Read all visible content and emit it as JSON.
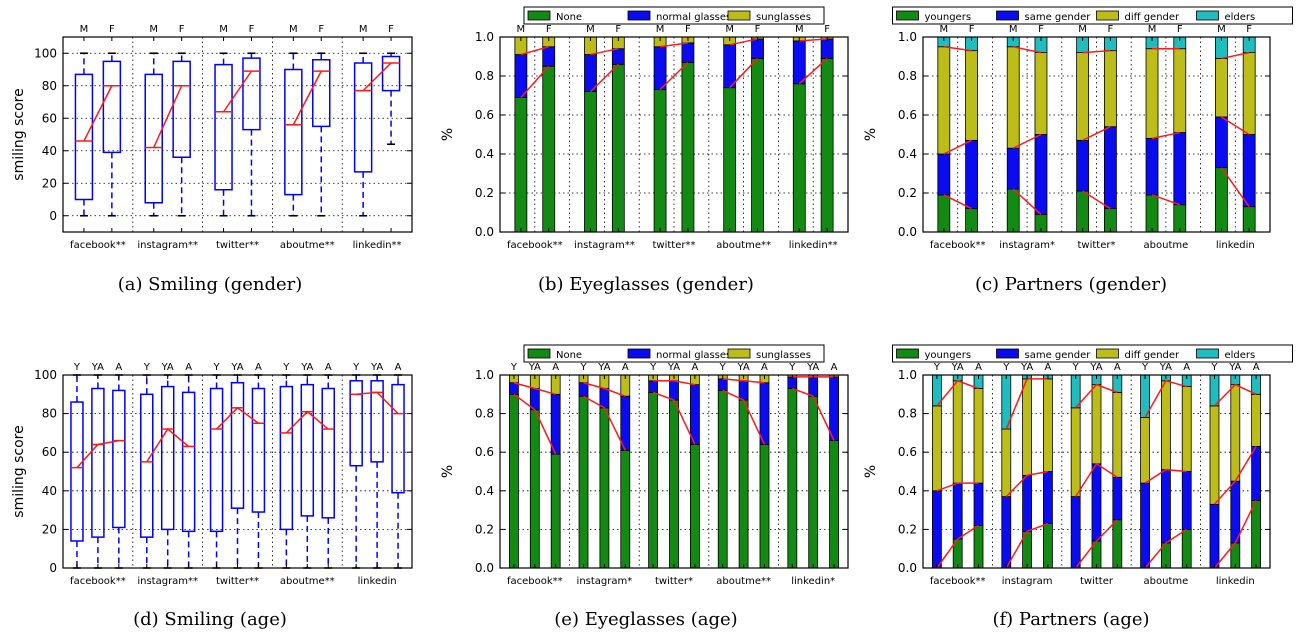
{
  "colors": {
    "green": "#138a13",
    "blue": "#0b0bf0",
    "olive": "#bdbd1a",
    "cyan": "#1fbdbd",
    "red": "#ff1a1a",
    "box": "#0000ff"
  },
  "chart_data": [
    {
      "type": "box",
      "caption": "(a) Smiling (gender)",
      "ylabel": "smiling score",
      "ylim": [
        -10,
        110
      ],
      "yticks": [
        0,
        20,
        40,
        60,
        80,
        100
      ],
      "groups": [
        "facebook**",
        "instagram**",
        "twitter**",
        "aboutme**",
        "linkedin**"
      ],
      "subgroups": [
        "M",
        "F"
      ],
      "boxes": [
        [
          {
            "whislo": 0,
            "q1": 10,
            "med": 46,
            "q3": 87,
            "whishi": 100
          },
          {
            "whislo": 0,
            "q1": 39,
            "med": 80,
            "q3": 95,
            "whishi": 100
          }
        ],
        [
          {
            "whislo": 0,
            "q1": 8,
            "med": 42,
            "q3": 87,
            "whishi": 100
          },
          {
            "whislo": 0,
            "q1": 36,
            "med": 80,
            "q3": 95,
            "whishi": 100
          }
        ],
        [
          {
            "whislo": 0,
            "q1": 16,
            "med": 64,
            "q3": 93,
            "whishi": 100
          },
          {
            "whislo": 0,
            "q1": 53,
            "med": 89,
            "q3": 97,
            "whishi": 100
          }
        ],
        [
          {
            "whislo": 0,
            "q1": 13,
            "med": 56,
            "q3": 90,
            "whishi": 100
          },
          {
            "whislo": 0,
            "q1": 55,
            "med": 89,
            "q3": 96,
            "whishi": 100
          }
        ],
        [
          {
            "whislo": 0,
            "q1": 27,
            "med": 77,
            "q3": 94,
            "whishi": 100
          },
          {
            "whislo": 44,
            "q1": 77,
            "med": 94,
            "q3": 98,
            "whishi": 100
          }
        ]
      ]
    },
    {
      "type": "bar",
      "stacked": true,
      "caption": "(b) Eyeglasses (gender)",
      "ylabel": "%",
      "ylim": [
        0,
        1.0
      ],
      "yticks": [
        0.0,
        0.2,
        0.4,
        0.6,
        0.8,
        1.0
      ],
      "legend": [
        "None",
        "normal glasses",
        "sunglasses"
      ],
      "legend_colors": [
        "#138a13",
        "#0b0bf0",
        "#bdbd1a"
      ],
      "groups": [
        "facebook**",
        "instagram**",
        "twitter**",
        "aboutme**",
        "linkedin**"
      ],
      "subgroups": [
        "M",
        "F"
      ],
      "bars": [
        [
          [
            0.69,
            0.22,
            0.09
          ],
          [
            0.85,
            0.1,
            0.05
          ]
        ],
        [
          [
            0.72,
            0.19,
            0.09
          ],
          [
            0.86,
            0.08,
            0.06
          ]
        ],
        [
          [
            0.73,
            0.22,
            0.05
          ],
          [
            0.87,
            0.1,
            0.03
          ]
        ],
        [
          [
            0.74,
            0.22,
            0.04
          ],
          [
            0.89,
            0.1,
            0.01
          ]
        ],
        [
          [
            0.76,
            0.22,
            0.02
          ],
          [
            0.89,
            0.1,
            0.01
          ]
        ]
      ]
    },
    {
      "type": "bar",
      "stacked": true,
      "caption": "(c) Partners (gender)",
      "ylabel": "%",
      "ylim": [
        0,
        1.0
      ],
      "yticks": [
        0.0,
        0.2,
        0.4,
        0.6,
        0.8,
        1.0
      ],
      "legend": [
        "youngers",
        "same gender",
        "diff gender",
        "elders"
      ],
      "legend_colors": [
        "#138a13",
        "#0b0bf0",
        "#bdbd1a",
        "#1fbdbd"
      ],
      "groups": [
        "facebook**",
        "instagram*",
        "twitter*",
        "aboutme",
        "linkedin"
      ],
      "subgroups": [
        "M",
        "F"
      ],
      "bars": [
        [
          [
            0.19,
            0.21,
            0.55,
            0.05
          ],
          [
            0.12,
            0.35,
            0.46,
            0.07
          ]
        ],
        [
          [
            0.22,
            0.21,
            0.52,
            0.05
          ],
          [
            0.09,
            0.41,
            0.42,
            0.08
          ]
        ],
        [
          [
            0.21,
            0.26,
            0.45,
            0.08
          ],
          [
            0.12,
            0.42,
            0.39,
            0.07
          ]
        ],
        [
          [
            0.19,
            0.29,
            0.46,
            0.06
          ],
          [
            0.14,
            0.37,
            0.43,
            0.06
          ]
        ],
        [
          [
            0.33,
            0.26,
            0.3,
            0.11
          ],
          [
            0.13,
            0.37,
            0.42,
            0.08
          ]
        ]
      ]
    },
    {
      "type": "box",
      "caption": "(d) Smiling (age)",
      "ylabel": "smiling score",
      "ylim": [
        0,
        100
      ],
      "yticks": [
        0,
        20,
        40,
        60,
        80,
        100
      ],
      "groups": [
        "facebook**",
        "instagram**",
        "twitter**",
        "aboutme**",
        "linkedin"
      ],
      "subgroups": [
        "Y",
        "YA",
        "A"
      ],
      "boxes": [
        [
          {
            "whislo": 0,
            "q1": 14,
            "med": 52,
            "q3": 86,
            "whishi": 100
          },
          {
            "whislo": 0,
            "q1": 16,
            "med": 64,
            "q3": 93,
            "whishi": 100
          },
          {
            "whislo": 0,
            "q1": 21,
            "med": 66,
            "q3": 92,
            "whishi": 100
          }
        ],
        [
          {
            "whislo": 0,
            "q1": 16,
            "med": 55,
            "q3": 90,
            "whishi": 100
          },
          {
            "whislo": 0,
            "q1": 20,
            "med": 72,
            "q3": 94,
            "whishi": 100
          },
          {
            "whislo": 0,
            "q1": 19,
            "med": 63,
            "q3": 91,
            "whishi": 100
          }
        ],
        [
          {
            "whislo": 0,
            "q1": 19,
            "med": 72,
            "q3": 93,
            "whishi": 100
          },
          {
            "whislo": 0,
            "q1": 31,
            "med": 83,
            "q3": 96,
            "whishi": 100
          },
          {
            "whislo": 0,
            "q1": 29,
            "med": 75,
            "q3": 93,
            "whishi": 100
          }
        ],
        [
          {
            "whislo": 0,
            "q1": 20,
            "med": 70,
            "q3": 94,
            "whishi": 100
          },
          {
            "whislo": 0,
            "q1": 27,
            "med": 81,
            "q3": 95,
            "whishi": 100
          },
          {
            "whislo": 0,
            "q1": 26,
            "med": 72,
            "q3": 93,
            "whishi": 100
          }
        ],
        [
          {
            "whislo": 0,
            "q1": 53,
            "med": 90,
            "q3": 97,
            "whishi": 100
          },
          {
            "whislo": 0,
            "q1": 55,
            "med": 91,
            "q3": 97,
            "whishi": 100
          },
          {
            "whislo": 0,
            "q1": 39,
            "med": 80,
            "q3": 95,
            "whishi": 100
          }
        ]
      ]
    },
    {
      "type": "bar",
      "stacked": true,
      "caption": "(e) Eyeglasses (age)",
      "ylabel": "%",
      "ylim": [
        0,
        1.0
      ],
      "yticks": [
        0.0,
        0.2,
        0.4,
        0.6,
        0.8,
        1.0
      ],
      "legend": [
        "None",
        "normal glasses",
        "sunglasses"
      ],
      "legend_colors": [
        "#138a13",
        "#0b0bf0",
        "#bdbd1a"
      ],
      "groups": [
        "facebook**",
        "instagram*",
        "twitter*",
        "aboutme**",
        "linkedin*"
      ],
      "subgroups": [
        "Y",
        "YA",
        "A"
      ],
      "bars": [
        [
          [
            0.9,
            0.06,
            0.04
          ],
          [
            0.82,
            0.11,
            0.07
          ],
          [
            0.59,
            0.31,
            0.1
          ]
        ],
        [
          [
            0.89,
            0.07,
            0.04
          ],
          [
            0.83,
            0.1,
            0.07
          ],
          [
            0.61,
            0.28,
            0.11
          ]
        ],
        [
          [
            0.91,
            0.06,
            0.03
          ],
          [
            0.87,
            0.1,
            0.03
          ],
          [
            0.64,
            0.31,
            0.05
          ]
        ],
        [
          [
            0.92,
            0.06,
            0.02
          ],
          [
            0.87,
            0.1,
            0.03
          ],
          [
            0.64,
            0.32,
            0.04
          ]
        ],
        [
          [
            0.93,
            0.06,
            0.01
          ],
          [
            0.89,
            0.1,
            0.01
          ],
          [
            0.66,
            0.33,
            0.01
          ]
        ]
      ]
    },
    {
      "type": "bar",
      "stacked": true,
      "caption": "(f) Partners (age)",
      "ylabel": "%",
      "ylim": [
        0,
        1.0
      ],
      "yticks": [
        0.0,
        0.2,
        0.4,
        0.6,
        0.8,
        1.0
      ],
      "legend": [
        "youngers",
        "same gender",
        "diff gender",
        "elders"
      ],
      "legend_colors": [
        "#138a13",
        "#0b0bf0",
        "#bdbd1a",
        "#1fbdbd"
      ],
      "groups": [
        "facebook**",
        "instagram",
        "twitter",
        "aboutme",
        "linkedin"
      ],
      "subgroups": [
        "Y",
        "YA",
        "A"
      ],
      "bars": [
        [
          [
            0.0,
            0.4,
            0.44,
            0.16
          ],
          [
            0.15,
            0.29,
            0.53,
            0.03
          ],
          [
            0.22,
            0.22,
            0.49,
            0.07
          ]
        ],
        [
          [
            0.0,
            0.37,
            0.35,
            0.28
          ],
          [
            0.19,
            0.29,
            0.5,
            0.02
          ],
          [
            0.23,
            0.27,
            0.48,
            0.02
          ]
        ],
        [
          [
            0.0,
            0.37,
            0.46,
            0.17
          ],
          [
            0.14,
            0.4,
            0.41,
            0.05
          ],
          [
            0.25,
            0.22,
            0.44,
            0.09
          ]
        ],
        [
          [
            0.0,
            0.44,
            0.34,
            0.22
          ],
          [
            0.13,
            0.38,
            0.46,
            0.03
          ],
          [
            0.2,
            0.3,
            0.44,
            0.06
          ]
        ],
        [
          [
            0.0,
            0.33,
            0.51,
            0.16
          ],
          [
            0.13,
            0.32,
            0.5,
            0.05
          ],
          [
            0.35,
            0.28,
            0.27,
            0.1
          ]
        ]
      ]
    }
  ]
}
